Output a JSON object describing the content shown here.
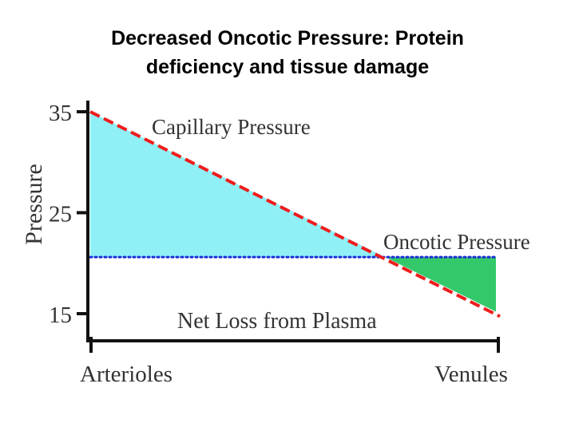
{
  "slide": {
    "title_line1": "Decreased Oncotic Pressure:  Protein",
    "title_line2": "deficiency and tissue damage"
  },
  "chart_data": {
    "type": "line",
    "ylabel": "Pressure",
    "ylim": [
      15,
      35
    ],
    "y_ticks": [
      15,
      25,
      35
    ],
    "x_tick_labels": [
      "Arterioles",
      "Venules"
    ],
    "x": [
      0,
      1
    ],
    "series": [
      {
        "name": "Capillary Pressure",
        "values": [
          35,
          15.2
        ],
        "style": "dashed",
        "color": "#ee1c1c"
      },
      {
        "name": "Oncotic Pressure",
        "values": [
          20.6,
          20.6
        ],
        "style": "dotted",
        "color": "#1a2fd6"
      }
    ],
    "annotation": "Net Loss from Plasma",
    "fill_colors": {
      "filtration": "#8ff0f5",
      "reabsorption": "#33c96b"
    }
  }
}
